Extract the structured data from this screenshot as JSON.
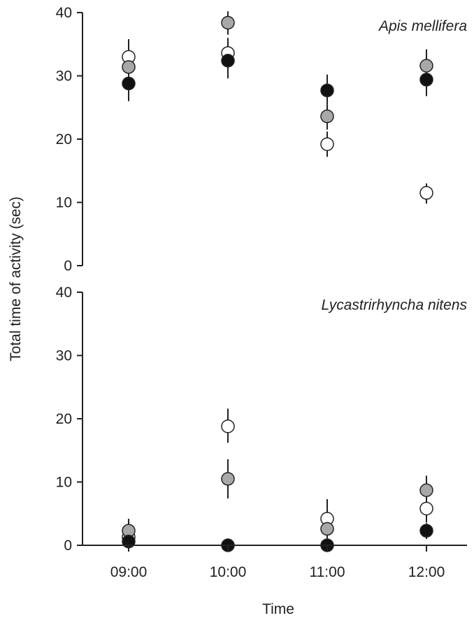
{
  "chart_data": [
    {
      "type": "scatter",
      "title": "Apis mellifera",
      "xlabel": "Time",
      "ylabel": "Total time of activity (sec)",
      "categories": [
        "09:00",
        "10:00",
        "11:00",
        "12:00"
      ],
      "yticks": [
        "0",
        "10",
        "20",
        "30",
        "40"
      ],
      "ylim": [
        0,
        40
      ],
      "grid": false,
      "series": [
        {
          "fill": "#ffffff",
          "values": [
            33.0,
            33.6,
            19.2,
            11.5
          ],
          "err_low": [
            31.0,
            31.2,
            17.2,
            9.8
          ],
          "err_high": [
            35.8,
            36.0,
            21.2,
            13.0
          ]
        },
        {
          "fill": "#a8a8a8",
          "values": [
            31.4,
            38.4,
            23.6,
            31.6
          ],
          "err_low": [
            29.5,
            36.5,
            21.5,
            29.5
          ],
          "err_high": [
            33.5,
            40.2,
            25.5,
            34.2
          ]
        },
        {
          "fill": "#111111",
          "values": [
            28.8,
            32.4,
            27.7,
            29.4
          ],
          "err_low": [
            26.0,
            29.6,
            25.5,
            26.8
          ],
          "err_high": [
            31.0,
            34.5,
            30.2,
            32.0
          ]
        }
      ]
    },
    {
      "type": "scatter",
      "title": "Lycastrirhyncha nitens",
      "xlabel": "Time",
      "ylabel": "Total time of activity (sec)",
      "categories": [
        "09:00",
        "10:00",
        "11:00",
        "12:00"
      ],
      "yticks": [
        "0",
        "10",
        "20",
        "30",
        "40"
      ],
      "ylim": [
        0,
        40
      ],
      "grid": false,
      "series": [
        {
          "fill": "#ffffff",
          "values": [
            1.3,
            18.8,
            4.2,
            5.8
          ],
          "err_low": [
            0.5,
            16.2,
            2.0,
            3.6
          ],
          "err_high": [
            2.4,
            21.6,
            7.3,
            8.2
          ]
        },
        {
          "fill": "#a8a8a8",
          "values": [
            2.3,
            10.5,
            2.6,
            8.7
          ],
          "err_low": [
            0.8,
            7.4,
            0.8,
            6.5
          ],
          "err_high": [
            4.2,
            13.6,
            4.6,
            11.0
          ]
        },
        {
          "fill": "#111111",
          "values": [
            0.6,
            0.0,
            0.0,
            2.3
          ],
          "err_low": [
            0.0,
            0.0,
            0.0,
            1.0
          ],
          "err_high": [
            1.2,
            0.0,
            0.0,
            3.5
          ]
        }
      ]
    }
  ]
}
